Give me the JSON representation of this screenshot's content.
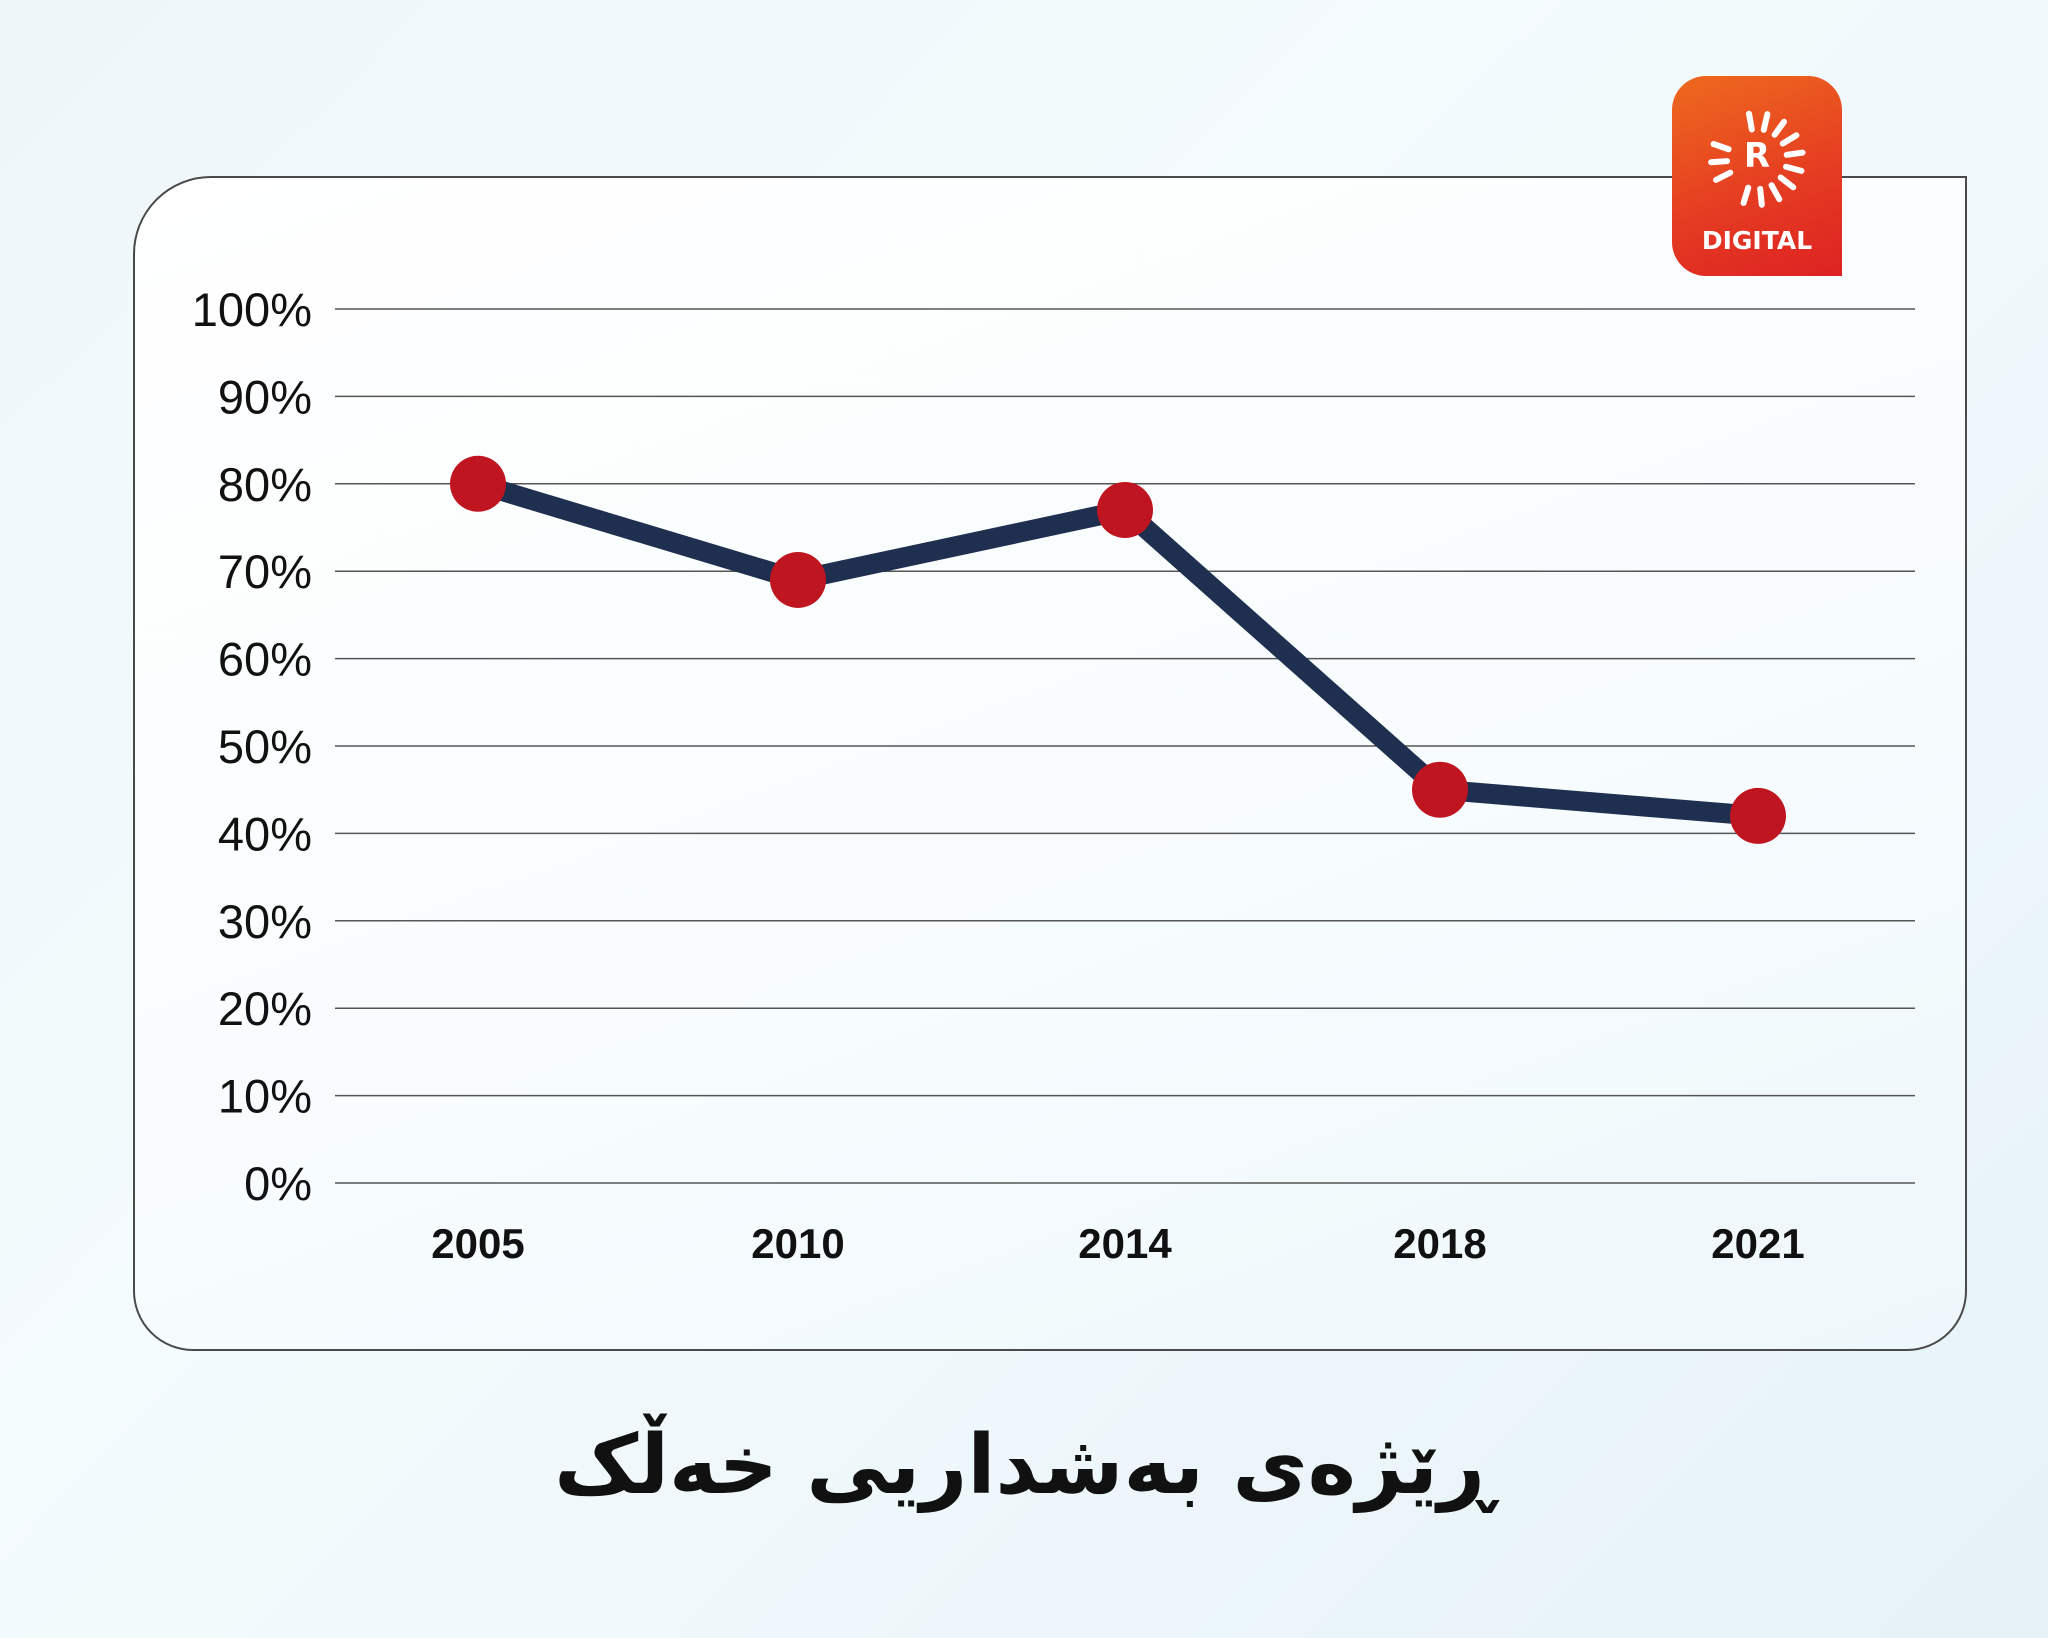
{
  "title": "ڕێژەی بەشداریی خەڵک",
  "logo": {
    "letter": "R",
    "text": "DIGITAL",
    "colors": [
      "#ef6a1e",
      "#dd2222"
    ]
  },
  "chart_data": {
    "type": "line",
    "categories": [
      "2005",
      "2010",
      "2014",
      "2018",
      "2021"
    ],
    "series": [
      {
        "values": [
          80,
          69,
          77,
          45,
          42
        ]
      }
    ],
    "yticks": [
      "0%",
      "10%",
      "20%",
      "30%",
      "40%",
      "50%",
      "60%",
      "70%",
      "80%",
      "90%",
      "100%"
    ],
    "ylim": [
      0,
      100
    ],
    "grid": true,
    "line_color": "#1f2f4f",
    "marker_color": "#bf1520"
  }
}
